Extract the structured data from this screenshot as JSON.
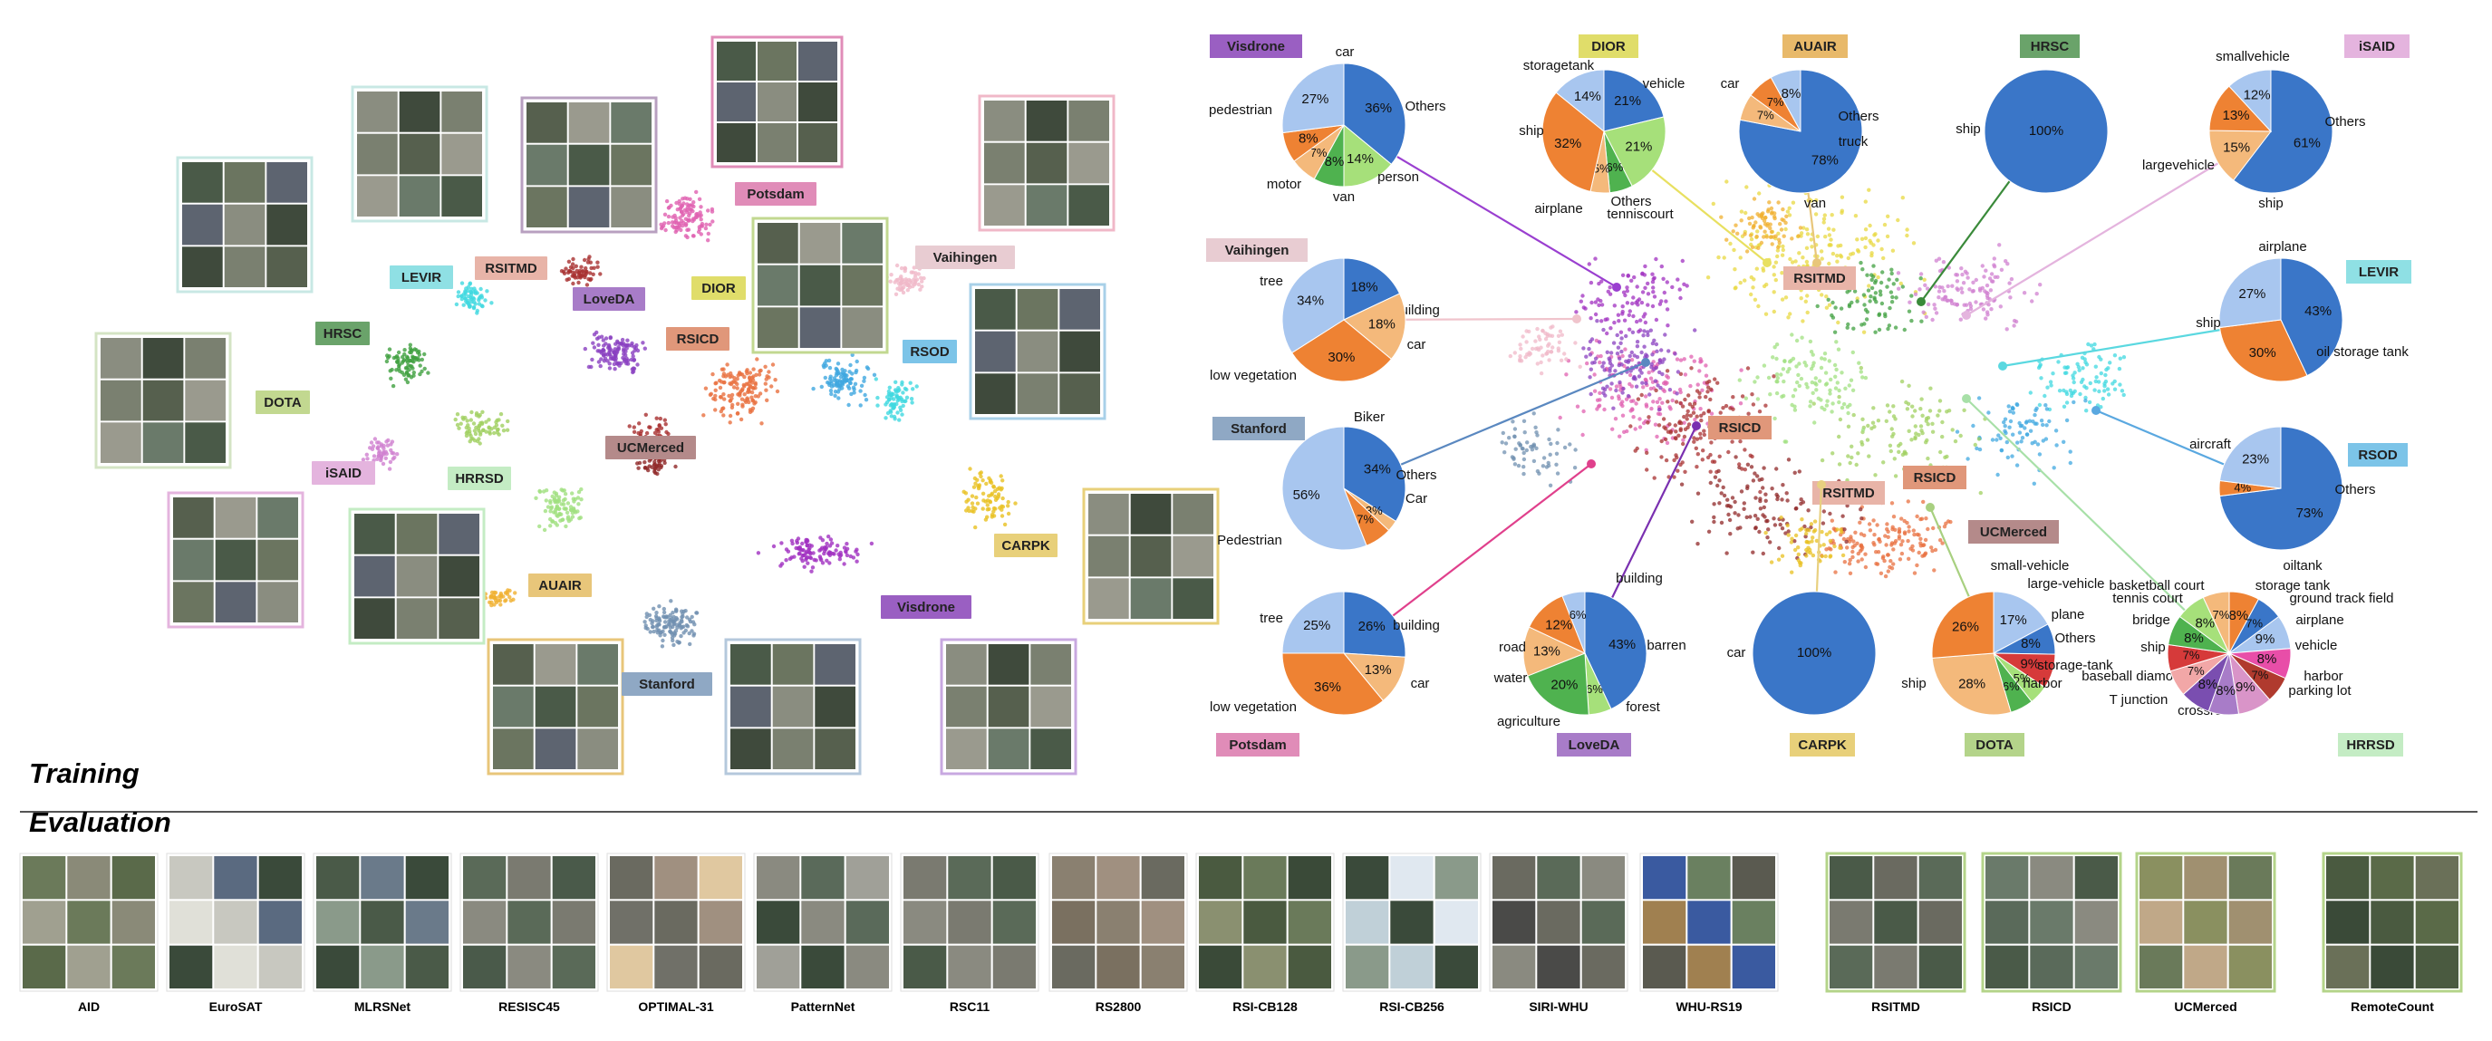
{
  "sections": {
    "training": "Training",
    "evaluation": "Evaluation"
  },
  "tsne_labels": [
    "Potsdam",
    "Vaihingen",
    "DIOR",
    "RSITMD",
    "LEVIR",
    "LoveDA",
    "RSICD",
    "RSOD",
    "HRSC",
    "DOTA",
    "UCMerced",
    "iSAID",
    "HRRSD",
    "CARPK",
    "AUAIR",
    "Visdrone",
    "Stanford"
  ],
  "pie_panels": [
    {
      "title": "Visdrone",
      "color": "#9a5fc2",
      "slices": [
        {
          "label": "car",
          "pct": "36%",
          "value": 36,
          "color": "#3a76c8"
        },
        {
          "label": "Others",
          "pct": "14%",
          "value": 14,
          "color": "#a6e07a"
        },
        {
          "label": "person",
          "pct": "8%",
          "value": 8,
          "color": "#4fb24f"
        },
        {
          "label": "van",
          "pct": "7%",
          "value": 7,
          "color": "#f4b97b"
        },
        {
          "label": "motor",
          "pct": "8%",
          "value": 8,
          "color": "#ee8233"
        },
        {
          "label": "pedestrian",
          "pct": "27%",
          "value": 27,
          "color": "#a8c6ef"
        }
      ]
    },
    {
      "title": "DIOR",
      "color": "#e0dd6a",
      "slices": [
        {
          "label": "vehicle",
          "pct": "21%",
          "value": 21,
          "color": "#3a76c8"
        },
        {
          "label": "Others",
          "pct": "21%",
          "value": 21,
          "color": "#a6e07a"
        },
        {
          "label": "tenniscourt",
          "pct": "6%",
          "value": 6,
          "color": "#4fb24f"
        },
        {
          "label": "airplane",
          "pct": "5%",
          "value": 5,
          "color": "#f4b97b"
        },
        {
          "label": "ship",
          "pct": "32%",
          "value": 32,
          "color": "#ee8233"
        },
        {
          "label": "storagetank",
          "pct": "14%",
          "value": 14,
          "color": "#a8c6ef"
        }
      ]
    },
    {
      "title": "AUAIR",
      "color": "#e8b96a",
      "slices": [
        {
          "label": "car",
          "pct": "78%",
          "value": 78,
          "color": "#3a76c8"
        },
        {
          "label": "Others",
          "pct": "7%",
          "value": 7,
          "color": "#f4b97b"
        },
        {
          "label": "truck",
          "pct": "7%",
          "value": 7,
          "color": "#ee8233"
        },
        {
          "label": "van",
          "pct": "8%",
          "value": 8,
          "color": "#a8c6ef"
        }
      ]
    },
    {
      "title": "HRSC",
      "color": "#6aa36a",
      "slices": [
        {
          "label": "ship",
          "pct": "100%",
          "value": 100,
          "color": "#3a76c8"
        }
      ]
    },
    {
      "title": "iSAID",
      "color": "#e4b4de",
      "slices": [
        {
          "label": "smallvehicle",
          "pct": "61%",
          "value": 61,
          "color": "#3a76c8"
        },
        {
          "label": "Others",
          "pct": "15%",
          "value": 15,
          "color": "#f4b97b"
        },
        {
          "label": "ship",
          "pct": "13%",
          "value": 13,
          "color": "#ee8233"
        },
        {
          "label": "largevehicle",
          "pct": "12%",
          "value": 12,
          "color": "#a8c6ef"
        }
      ]
    },
    {
      "title": "Vaihingen",
      "color": "#e8ccd2",
      "slices": [
        {
          "label": "building",
          "pct": "18%",
          "value": 18,
          "color": "#3a76c8"
        },
        {
          "label": "car",
          "pct": "18%",
          "value": 18,
          "color": "#f4b97b"
        },
        {
          "label": "low vegetation",
          "pct": "30%",
          "value": 30,
          "color": "#ee8233"
        },
        {
          "label": "tree",
          "pct": "34%",
          "value": 34,
          "color": "#a8c6ef"
        }
      ]
    },
    {
      "title": "LEVIR",
      "color": "#8fe0e4",
      "slices": [
        {
          "label": "airplane",
          "pct": "43%",
          "value": 43,
          "color": "#3a76c8"
        },
        {
          "label": "oil storage tank",
          "pct": "30%",
          "value": 30,
          "color": "#ee8233"
        },
        {
          "label": "ship",
          "pct": "27%",
          "value": 27,
          "color": "#a8c6ef"
        }
      ]
    },
    {
      "title": "Stanford",
      "color": "#8fa8c4",
      "slices": [
        {
          "label": "Biker",
          "pct": "34%",
          "value": 34,
          "color": "#3a76c8"
        },
        {
          "label": "Others",
          "pct": "3%",
          "value": 3,
          "color": "#f4b97b"
        },
        {
          "label": "Car",
          "pct": "7%",
          "value": 7,
          "color": "#ee8233"
        },
        {
          "label": "Pedestrian",
          "pct": "56%",
          "value": 56,
          "color": "#a8c6ef"
        }
      ]
    },
    {
      "title": "RSOD",
      "color": "#7cc4e8",
      "slices": [
        {
          "label": "aircraft",
          "pct": "73%",
          "value": 73,
          "color": "#3a76c8"
        },
        {
          "label": "Others",
          "pct": "4%",
          "value": 4,
          "color": "#ee8233"
        },
        {
          "label": "oiltank",
          "pct": "23%",
          "value": 23,
          "color": "#a8c6ef"
        }
      ]
    },
    {
      "title": "Potsdam",
      "color": "#e08cb8",
      "slices": [
        {
          "label": "building",
          "pct": "26%",
          "value": 26,
          "color": "#3a76c8"
        },
        {
          "label": "car",
          "pct": "13%",
          "value": 13,
          "color": "#f4b97b"
        },
        {
          "label": "low vegetation",
          "pct": "36%",
          "value": 36,
          "color": "#ee8233"
        },
        {
          "label": "tree",
          "pct": "25%",
          "value": 25,
          "color": "#a8c6ef"
        }
      ]
    },
    {
      "title": "LoveDA",
      "color": "#a87cc8",
      "slices": [
        {
          "label": "building",
          "pct": "43%",
          "value": 43,
          "color": "#3a76c8"
        },
        {
          "label": "barren",
          "pct": "6%",
          "value": 6,
          "color": "#a6e07a"
        },
        {
          "label": "forest",
          "pct": "20%",
          "value": 20,
          "color": "#4fb24f"
        },
        {
          "label": "agriculture",
          "pct": "13%",
          "value": 13,
          "color": "#f4b97b"
        },
        {
          "label": "water",
          "pct": "12%",
          "value": 12,
          "color": "#ee8233"
        },
        {
          "label": "road",
          "pct": "6%",
          "value": 6,
          "color": "#a8c6ef"
        }
      ]
    },
    {
      "title": "CARPK",
      "color": "#e8d07a",
      "slices": [
        {
          "label": "car",
          "pct": "100%",
          "value": 100,
          "color": "#3a76c8"
        }
      ]
    },
    {
      "title": "DOTA",
      "color": "#b4d48a",
      "slices": [
        {
          "label": "large-vehicle",
          "pct": "17%",
          "value": 17,
          "color": "#a8c6ef"
        },
        {
          "label": "plane",
          "pct": "8%",
          "value": 8,
          "color": "#3a76c8"
        },
        {
          "label": "Others",
          "pct": "9%",
          "value": 9,
          "color": "#d63a3a"
        },
        {
          "label": "storage-tank",
          "pct": "5%",
          "value": 5,
          "color": "#a6e07a"
        },
        {
          "label": "harbor",
          "pct": "6%",
          "value": 6,
          "color": "#4fb24f"
        },
        {
          "label": "ship",
          "pct": "28%",
          "value": 28,
          "color": "#f4b97b"
        },
        {
          "label": "small-vehicle",
          "pct": "26%",
          "value": 26,
          "color": "#ee8233"
        }
      ]
    },
    {
      "title": "HRRSD",
      "color": "#c4ecc4",
      "slices": [
        {
          "label": "ground track field",
          "pct": "8%",
          "value": 8,
          "color": "#ee8233"
        },
        {
          "label": "airplane",
          "pct": "7%",
          "value": 7,
          "color": "#3a76c8"
        },
        {
          "label": "vehicle",
          "pct": "9%",
          "value": 9,
          "color": "#a8c6ef"
        },
        {
          "label": "harbor",
          "pct": "8%",
          "value": 8,
          "color": "#e84ea8"
        },
        {
          "label": "parking lot",
          "pct": "7%",
          "value": 7,
          "color": "#b03a2e"
        },
        {
          "label": "crossroad",
          "pct": "9%",
          "value": 9,
          "color": "#d994c8"
        },
        {
          "label": "T junction",
          "pct": "8%",
          "value": 8,
          "color": "#a87cc8"
        },
        {
          "label": "baseball diamond",
          "pct": "8%",
          "value": 8,
          "color": "#7a4eb0"
        },
        {
          "label": "ship",
          "pct": "7%",
          "value": 7,
          "color": "#f2a7a7"
        },
        {
          "label": "bridge",
          "pct": "7%",
          "value": 7,
          "color": "#d63a3a"
        },
        {
          "label": "tennis court",
          "pct": "8%",
          "value": 8,
          "color": "#4fb24f"
        },
        {
          "label": "basketball court",
          "pct": "8%",
          "value": 8,
          "color": "#a6e07a"
        },
        {
          "label": "storage tank",
          "pct": "7%",
          "value": 7,
          "color": "#f4b97b"
        }
      ]
    }
  ],
  "scatter_labels": [
    "RSITMD",
    "RSICD",
    "RSICD",
    "RSITMD",
    "UCMerced"
  ],
  "evaluation_datasets": [
    "AID",
    "EuroSAT",
    "MLRSNet",
    "RESISC45",
    "OPTIMAL-31",
    "PatternNet",
    "RSC11",
    "RS2800",
    "RSI-CB128",
    "RSI-CB256",
    "SIRI-WHU",
    "WHU-RS19",
    "RSITMD",
    "RSICD",
    "UCMerced",
    "RemoteCount"
  ]
}
